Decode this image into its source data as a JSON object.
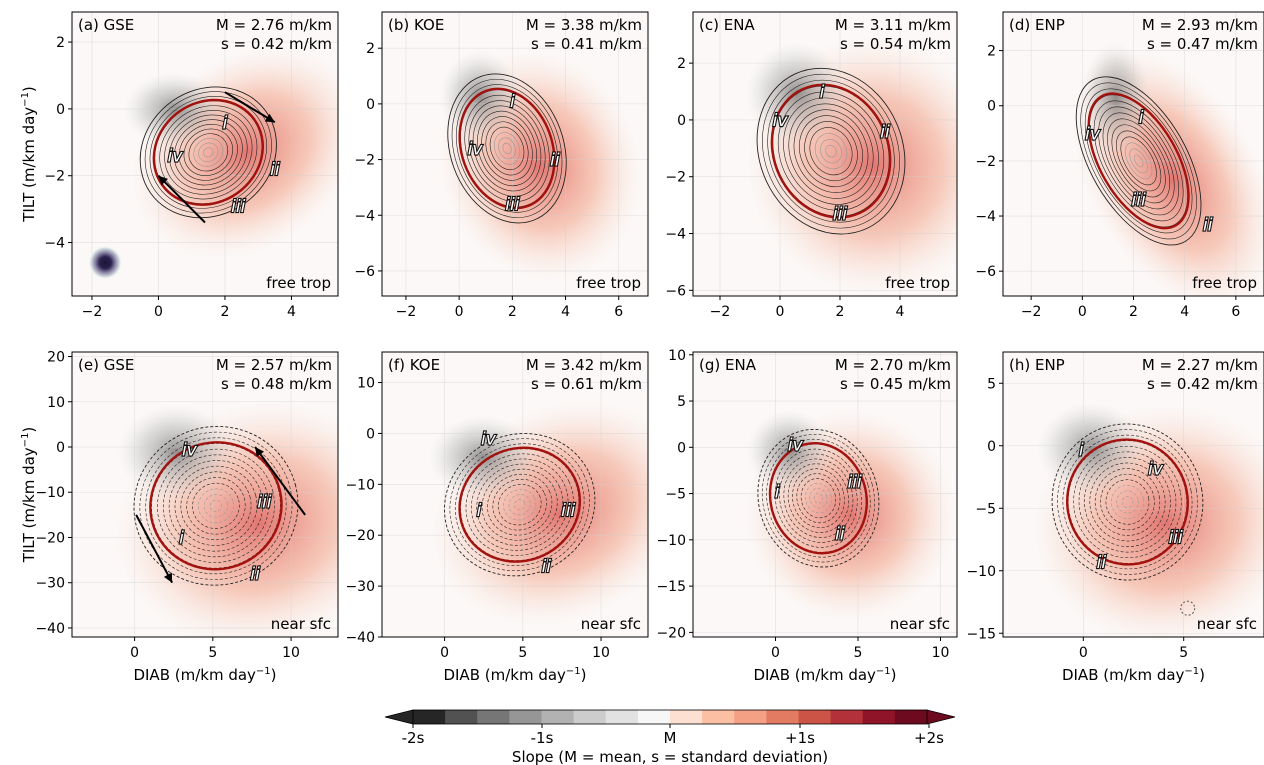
{
  "chart_data": {
    "type": "heatmap",
    "colorbar": {
      "label": "Slope (M = mean, s = standard deviation)",
      "tick_labels": [
        "-2s",
        "-1s",
        "M",
        "+1s",
        "+2s"
      ],
      "colors": [
        "#262626",
        "#525252",
        "#767676",
        "#969696",
        "#b2b2b2",
        "#cccccc",
        "#e2e2e2",
        "#f7f7f7",
        "#fde0d2",
        "#fbbfa3",
        "#f4a084",
        "#e37b63",
        "#cc5446",
        "#b33239",
        "#8f1428",
        "#6d0a1f"
      ]
    },
    "row_xlabel": "DIAB (m/km day⁻¹)",
    "row_ylabel": "TILT (m/km day⁻¹)",
    "panels": [
      {
        "label": "(a) GSE",
        "mean": "M = 2.76 m/km",
        "std": "s = 0.42 m/km",
        "layer": "free trop",
        "xlim": [
          -2.6,
          5.4
        ],
        "ylim": [
          -5.6,
          2.9
        ],
        "xticks": [
          -2,
          0,
          2,
          4
        ],
        "yticks": [
          -4,
          -2,
          0,
          2
        ],
        "center": [
          1.5,
          -1.3
        ],
        "radii": [
          1.7,
          1.5
        ],
        "angle": 35,
        "roman": [
          {
            "t": "i",
            "x": 2.0,
            "y": -0.4
          },
          {
            "t": "ii",
            "x": 3.5,
            "y": -1.8
          },
          {
            "t": "iii",
            "x": 2.4,
            "y": -2.9
          },
          {
            "t": "iv",
            "x": 0.5,
            "y": -1.4
          }
        ],
        "arrows": [
          [
            [
              2.0,
              0.5
            ],
            [
              3.5,
              -0.4
            ]
          ],
          [
            [
              1.4,
              -3.4
            ],
            [
              0.0,
              -2.0
            ]
          ]
        ],
        "blob": [
          -1.6,
          -4.6
        ]
      },
      {
        "label": "(b) KOE",
        "mean": "M = 3.38 m/km",
        "std": "s = 0.41 m/km",
        "layer": "free trop",
        "xlim": [
          -2.9,
          7.1
        ],
        "ylim": [
          -6.9,
          3.3
        ],
        "xticks": [
          -2,
          0,
          2,
          4,
          6
        ],
        "yticks": [
          -6,
          -4,
          -2,
          0,
          2
        ],
        "center": [
          1.8,
          -1.6
        ],
        "radii": [
          1.7,
          2.2
        ],
        "angle": 20,
        "roman": [
          {
            "t": "i",
            "x": 2.0,
            "y": 0.1
          },
          {
            "t": "ii",
            "x": 3.6,
            "y": -2.0
          },
          {
            "t": "iii",
            "x": 2.0,
            "y": -3.6
          },
          {
            "t": "iv",
            "x": 0.6,
            "y": -1.6
          }
        ]
      },
      {
        "label": "(c) ENA",
        "mean": "M = 3.11 m/km",
        "std": "s = 0.54 m/km",
        "layer": "free trop",
        "xlim": [
          -2.9,
          5.9
        ],
        "ylim": [
          -6.2,
          3.8
        ],
        "xticks": [
          -2,
          0,
          2,
          4
        ],
        "yticks": [
          -6,
          -4,
          -2,
          0,
          2
        ],
        "center": [
          1.7,
          -1.1
        ],
        "radii": [
          1.9,
          2.4
        ],
        "angle": 25,
        "roman": [
          {
            "t": "i",
            "x": 1.4,
            "y": 1.0
          },
          {
            "t": "ii",
            "x": 3.5,
            "y": -0.4
          },
          {
            "t": "iii",
            "x": 2.0,
            "y": -3.3
          },
          {
            "t": "iv",
            "x": 0.0,
            "y": 0.0
          }
        ]
      },
      {
        "label": "(d) ENP",
        "mean": "M = 2.93 m/km",
        "std": "s = 0.47 m/km",
        "layer": "free trop",
        "xlim": [
          -3.1,
          7.1
        ],
        "ylim": [
          -6.9,
          3.4
        ],
        "xticks": [
          -2,
          0,
          2,
          4,
          6
        ],
        "yticks": [
          -6,
          -4,
          -2,
          0,
          2
        ],
        "center": [
          2.2,
          -2.0
        ],
        "radii": [
          1.5,
          2.7
        ],
        "angle": 30,
        "roman": [
          {
            "t": "i",
            "x": 2.3,
            "y": -0.4
          },
          {
            "t": "ii",
            "x": 4.9,
            "y": -4.3
          },
          {
            "t": "iii",
            "x": 2.2,
            "y": -3.4
          },
          {
            "t": "iv",
            "x": 0.4,
            "y": -1.0
          }
        ]
      },
      {
        "label": "(e) GSE",
        "mean": "M = 2.57 m/km",
        "std": "s = 0.48 m/km",
        "layer": "near sfc",
        "xlim": [
          -4,
          13
        ],
        "ylim": [
          -42,
          21
        ],
        "xticks": [
          0,
          5,
          10
        ],
        "yticks": [
          -40,
          -30,
          -20,
          -10,
          0,
          10,
          20
        ],
        "center": [
          5.2,
          -13
        ],
        "radii": [
          4.2,
          14
        ],
        "angle": 15,
        "roman": [
          {
            "t": "i",
            "x": 3.0,
            "y": -20
          },
          {
            "t": "ii",
            "x": 7.7,
            "y": -28
          },
          {
            "t": "iii",
            "x": 8.3,
            "y": -12
          },
          {
            "t": "iv",
            "x": 3.5,
            "y": -0.5
          }
        ],
        "arrows": [
          [
            [
              0.1,
              -15
            ],
            [
              2.4,
              -30
            ]
          ],
          [
            [
              10.9,
              -15
            ],
            [
              7.7,
              0
            ]
          ]
        ]
      },
      {
        "label": "(f) KOE",
        "mean": "M = 3.42 m/km",
        "std": "s = 0.61 m/km",
        "layer": "near sfc",
        "xlim": [
          -4,
          13
        ],
        "ylim": [
          -40,
          16
        ],
        "xticks": [
          0,
          5,
          10
        ],
        "yticks": [
          -40,
          -30,
          -20,
          -10,
          0,
          10
        ],
        "center": [
          4.8,
          -14
        ],
        "radii": [
          3.9,
          11
        ],
        "angle": 25,
        "roman": [
          {
            "t": "i",
            "x": 2.2,
            "y": -15
          },
          {
            "t": "ii",
            "x": 6.5,
            "y": -26
          },
          {
            "t": "iii",
            "x": 7.9,
            "y": -15
          },
          {
            "t": "iv",
            "x": 2.8,
            "y": -1
          }
        ]
      },
      {
        "label": "(g) ENA",
        "mean": "M = 2.70 m/km",
        "std": "s = 0.45 m/km",
        "layer": "near sfc",
        "xlim": [
          -5,
          11
        ],
        "ylim": [
          -20.5,
          10.3
        ],
        "xticks": [
          0,
          5,
          10
        ],
        "yticks": [
          -20,
          -15,
          -10,
          -5,
          0,
          5,
          10
        ],
        "center": [
          2.6,
          -5.5
        ],
        "radii": [
          2.9,
          6
        ],
        "angle": 15,
        "roman": [
          {
            "t": "i",
            "x": 0.1,
            "y": -4.8
          },
          {
            "t": "ii",
            "x": 3.9,
            "y": -9.3
          },
          {
            "t": "iii",
            "x": 4.8,
            "y": -3.7
          },
          {
            "t": "iv",
            "x": 1.2,
            "y": 0.3
          }
        ]
      },
      {
        "label": "(h) ENP",
        "mean": "M = 2.27 m/km",
        "std": "s = 0.42 m/km",
        "layer": "near sfc",
        "xlim": [
          -4,
          9
        ],
        "ylim": [
          -15.3,
          7.5
        ],
        "xticks": [
          0,
          5
        ],
        "yticks": [
          -15,
          -10,
          -5,
          0,
          5
        ],
        "center": [
          2.2,
          -4.5
        ],
        "radii": [
          3.0,
          5
        ],
        "angle": 10,
        "roman": [
          {
            "t": "i",
            "x": -0.1,
            "y": -0.3
          },
          {
            "t": "ii",
            "x": 0.9,
            "y": -9.3
          },
          {
            "t": "iii",
            "x": 4.6,
            "y": -7.3
          },
          {
            "t": "iv",
            "x": 3.6,
            "y": -1.8
          }
        ],
        "blob": [
          5.2,
          -13.0
        ]
      }
    ]
  }
}
